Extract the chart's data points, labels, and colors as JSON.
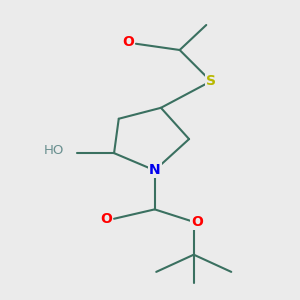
{
  "background_color": "#ebebeb",
  "atom_colors": {
    "O": "#ff0000",
    "S": "#b8b800",
    "N": "#0000ee",
    "C": "#3a7060",
    "H": "#6a9090"
  },
  "bond_color": "#3a7060",
  "bond_width": 1.5,
  "figsize": [
    3.0,
    3.0
  ],
  "dpi": 100
}
